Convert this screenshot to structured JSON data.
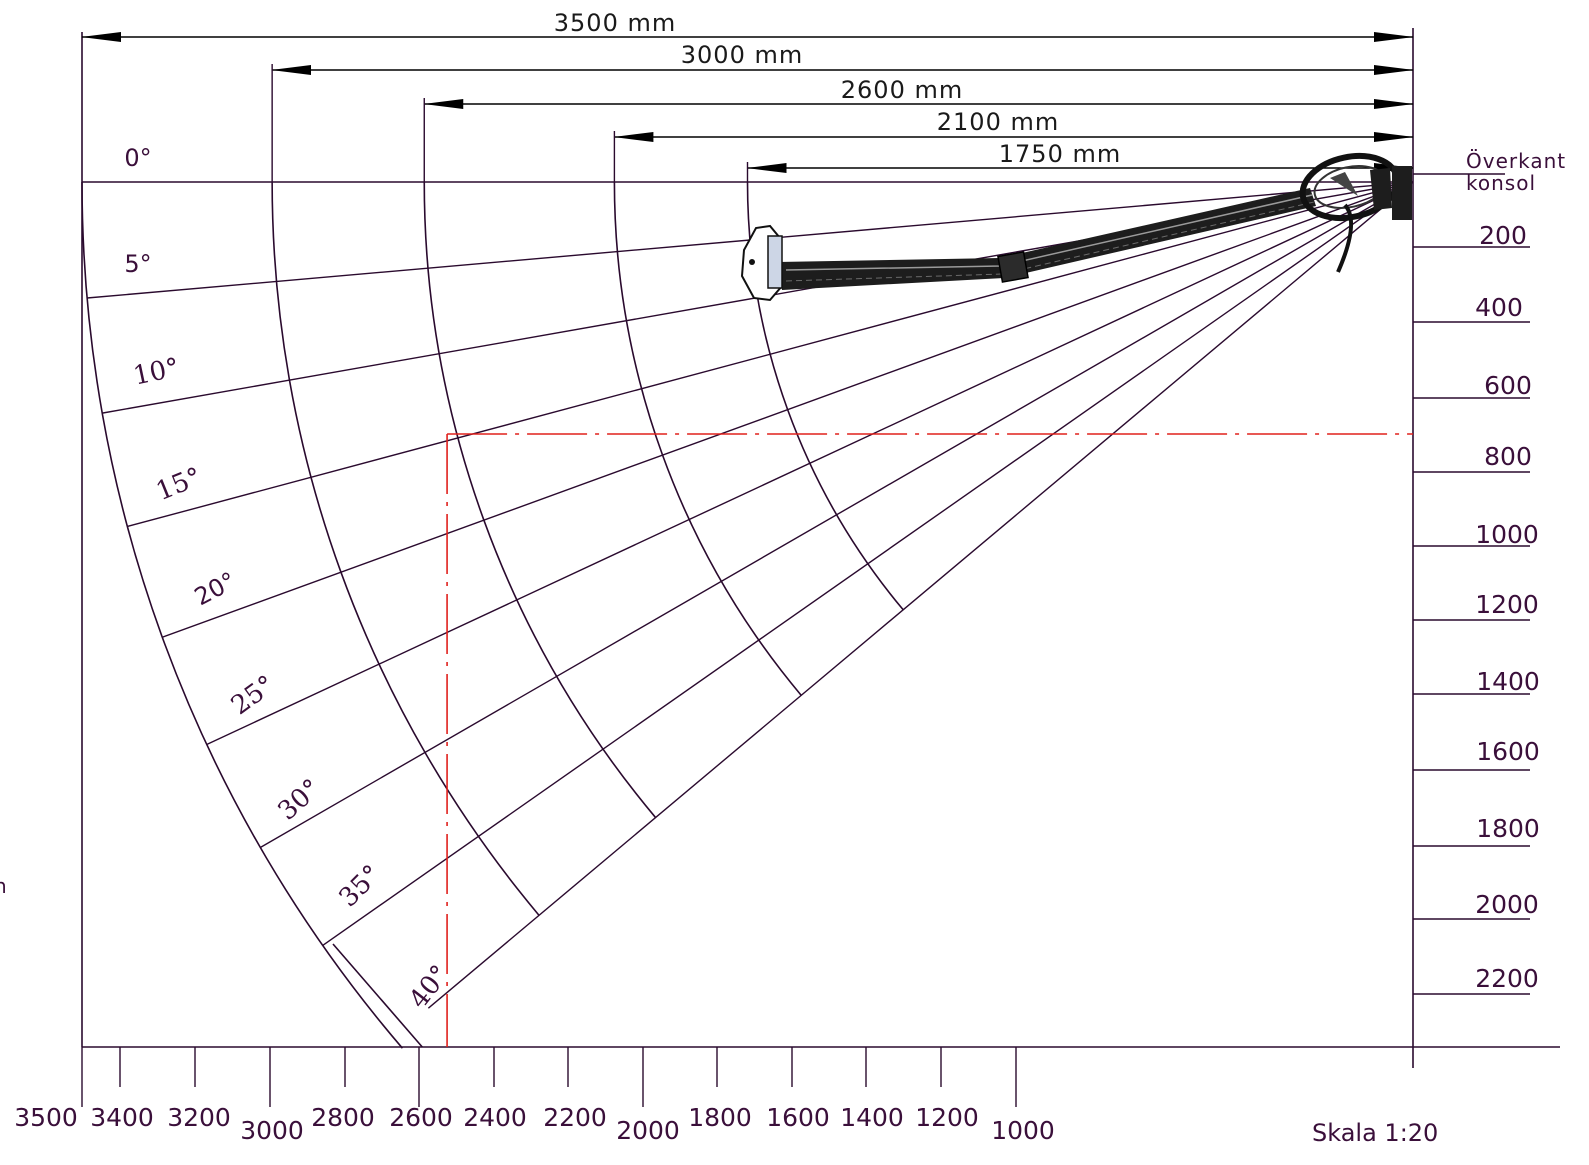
{
  "diagram": {
    "colors": {
      "line": "#2a0a2e",
      "dimension": "#000000",
      "guide": "#e0201c",
      "text": "#3a0f3a"
    },
    "reach_dimensions": [
      {
        "mm": 3500,
        "label": "3500 mm"
      },
      {
        "mm": 3000,
        "label": "3000 mm"
      },
      {
        "mm": 2600,
        "label": "2600 mm"
      },
      {
        "mm": 2100,
        "label": "2100 mm"
      },
      {
        "mm": 1750,
        "label": "1750 mm"
      }
    ],
    "angles": [
      {
        "deg": 0,
        "label": "0°"
      },
      {
        "deg": 5,
        "label": "5°"
      },
      {
        "deg": 10,
        "label": "10°"
      },
      {
        "deg": 15,
        "label": "15°"
      },
      {
        "deg": 20,
        "label": "20°"
      },
      {
        "deg": 25,
        "label": "25°"
      },
      {
        "deg": 30,
        "label": "30°"
      },
      {
        "deg": 35,
        "label": "35°"
      },
      {
        "deg": 40,
        "label": "40°"
      }
    ],
    "horizontal_axis_ticks": [
      "3500",
      "3400",
      "3200",
      "3000",
      "2800",
      "2600",
      "2400",
      "2200",
      "2000",
      "1800",
      "1600",
      "1400",
      "1200",
      "1000"
    ],
    "vertical_axis_ticks": [
      "200",
      "400",
      "600",
      "800",
      "1000",
      "1200",
      "1400",
      "1600",
      "1800",
      "2000",
      "2200"
    ],
    "reference_label_line1": "Överkant",
    "reference_label_line2": "konsol",
    "scale_label": "Skala 1:20",
    "cropped_left_text": "n",
    "example_reading": {
      "horizontal_mm": 2540,
      "drop_mm": 750,
      "angle_deg": 15
    }
  }
}
